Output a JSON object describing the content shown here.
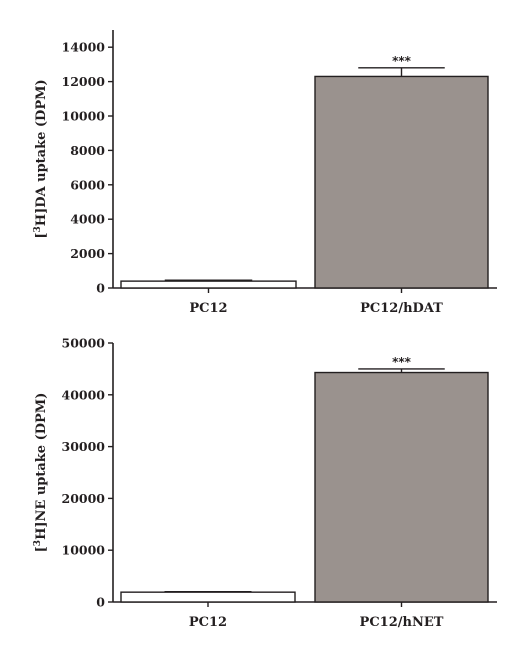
{
  "chart_data": [
    {
      "type": "bar",
      "ylabel_prefix": "[",
      "ylabel_sup": "3",
      "ylabel_rest": "H]DA uptake (DPM)",
      "categories": [
        "PC12",
        "PC12/hDAT"
      ],
      "values": [
        400,
        12300
      ],
      "errors": [
        50,
        500
      ],
      "bar_colors": [
        "#ffffff",
        "#9a928e"
      ],
      "annotations": [
        "",
        "***"
      ],
      "ylim": [
        0,
        15000
      ],
      "yticks": [
        0,
        2000,
        4000,
        6000,
        8000,
        10000,
        12000,
        14000
      ],
      "ytick_labels": [
        "0",
        "2000",
        "4000",
        "6000",
        "8000",
        "10000",
        "12000",
        "14000"
      ],
      "grid": false
    },
    {
      "type": "bar",
      "ylabel_prefix": "[",
      "ylabel_sup": "3",
      "ylabel_rest": "H]NE uptake (DPM)",
      "categories": [
        "PC12",
        "PC12/hNET"
      ],
      "values": [
        1900,
        44300
      ],
      "errors": [
        100,
        700
      ],
      "bar_colors": [
        "#ffffff",
        "#9a928e"
      ],
      "annotations": [
        "",
        "***"
      ],
      "ylim": [
        0,
        50000
      ],
      "yticks": [
        0,
        10000,
        20000,
        30000,
        40000,
        50000
      ],
      "ytick_labels": [
        "0",
        "10000",
        "20000",
        "30000",
        "40000",
        "50000"
      ],
      "grid": false
    }
  ]
}
